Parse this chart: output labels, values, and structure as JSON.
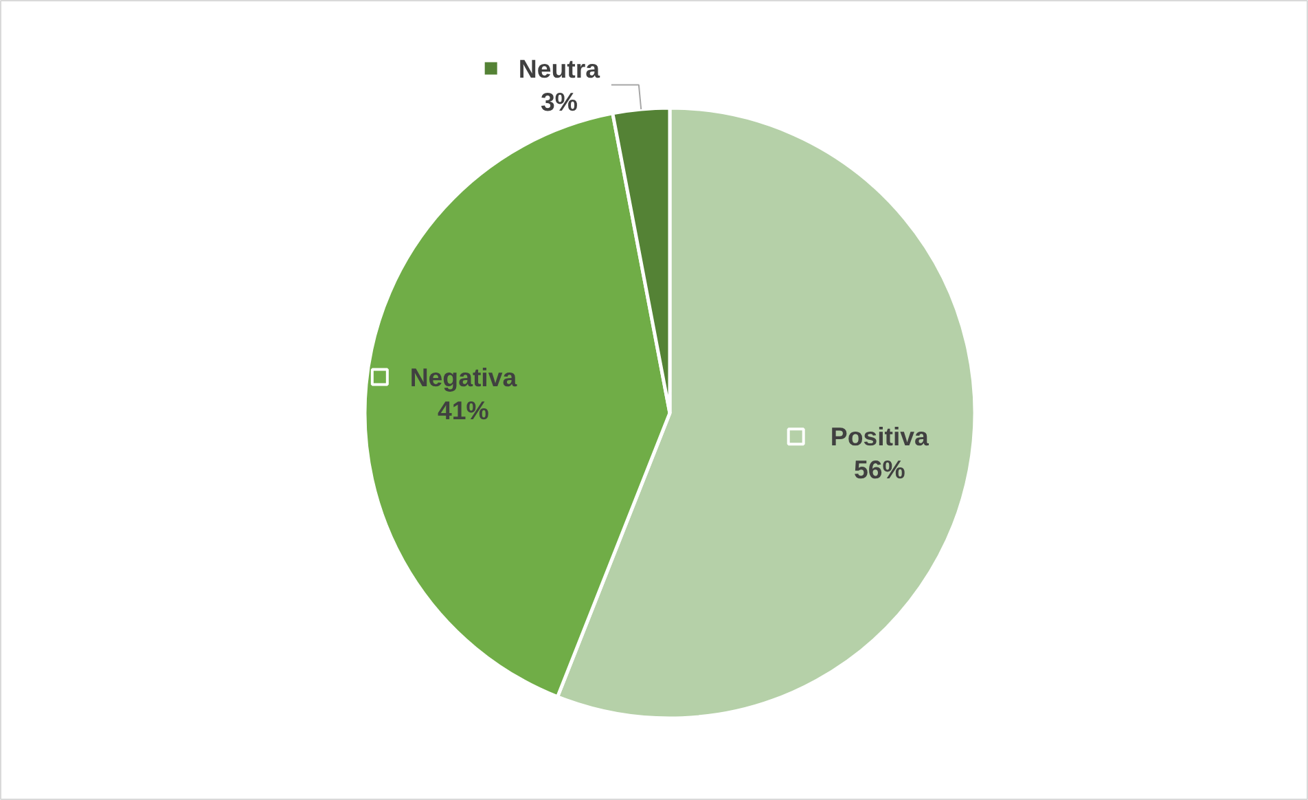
{
  "chart_data": {
    "type": "pie",
    "categories": [
      "Positiva",
      "Negativa",
      "Neutra"
    ],
    "values": [
      56,
      41,
      3
    ],
    "colors": [
      "#b5d0a8",
      "#70ad47",
      "#548235"
    ],
    "value_labels": [
      "56%",
      "41%",
      "3%"
    ],
    "legend": "center"
  }
}
